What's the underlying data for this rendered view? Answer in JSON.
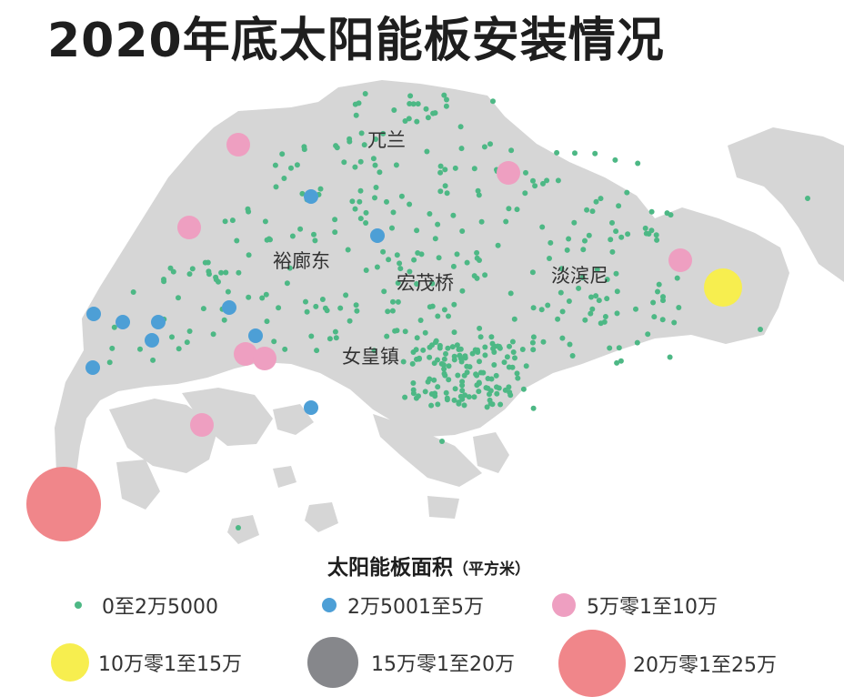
{
  "title": "2020年底太阳能板安装情况",
  "places": [
    {
      "name": "兀兰"
    },
    {
      "name": "裕廊东"
    },
    {
      "name": "宏茂桥"
    },
    {
      "name": "淡滨尼"
    },
    {
      "name": "女皇镇"
    }
  ],
  "legend": {
    "title": "太阳能板面积",
    "unit": "（平方米）",
    "categories": [
      {
        "label": "0至2万5000",
        "color": "#4db885"
      },
      {
        "label": "2万5001至5万",
        "color": "#4d9fd6"
      },
      {
        "label": "5万零1至10万",
        "color": "#ee9fc1"
      },
      {
        "label": "10万零1至15万",
        "color": "#f7ee4f"
      },
      {
        "label": "15万零1至20万",
        "color": "#86878b"
      },
      {
        "label": "20万零1至25万",
        "color": "#f0868a"
      }
    ]
  },
  "colors": {
    "land": "#d6d6d6",
    "water": "#ffffff"
  }
}
